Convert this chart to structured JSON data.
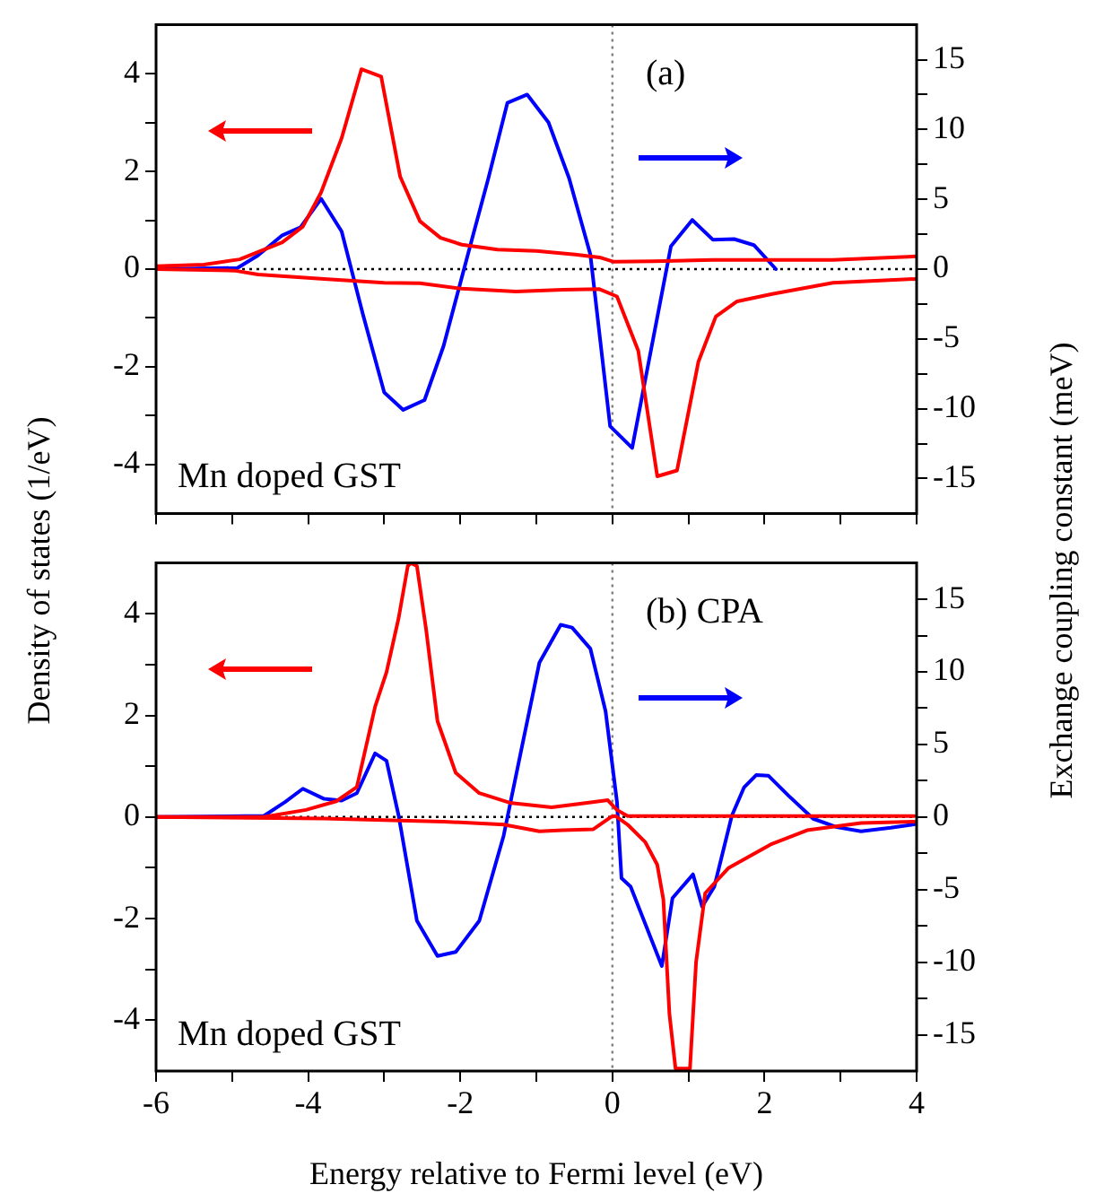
{
  "chart_data": [
    {
      "type": "line",
      "ylabel": "Density of states (1/eV)",
      "y2label": "Exchange coupling constant (meV)",
      "annotations": [
        "(a)",
        "Mn doped GST"
      ],
      "xlim": [
        -6,
        4
      ],
      "xticks": [
        {
          "value": -6,
          "label": null
        },
        {
          "value": -5,
          "label": null
        },
        {
          "value": -4,
          "label": null
        },
        {
          "value": -3,
          "label": null
        },
        {
          "value": -2,
          "label": null
        },
        {
          "value": -1,
          "label": null
        },
        {
          "value": 0,
          "label": null
        },
        {
          "value": 1,
          "label": null
        },
        {
          "value": 2,
          "label": null
        },
        {
          "value": 3,
          "label": null
        },
        {
          "value": 4,
          "label": null
        }
      ],
      "ylim": [
        -5,
        5
      ],
      "yticks": [
        {
          "value": -4,
          "label": "-4"
        },
        {
          "value": -3,
          "label": null
        },
        {
          "value": -2,
          "label": "-2"
        },
        {
          "value": -1,
          "label": null
        },
        {
          "value": 0,
          "label": "0"
        },
        {
          "value": 1,
          "label": null
        },
        {
          "value": 2,
          "label": "2"
        },
        {
          "value": 3,
          "label": null
        },
        {
          "value": 4,
          "label": "4"
        }
      ],
      "y2lim": [
        -17.5,
        17.5
      ],
      "y2ticks": [
        {
          "value": -15,
          "label": "-15"
        },
        {
          "value": -12.5,
          "label": null
        },
        {
          "value": -10,
          "label": "-10"
        },
        {
          "value": -7.5,
          "label": null
        },
        {
          "value": -5,
          "label": "-5"
        },
        {
          "value": -2.5,
          "label": null
        },
        {
          "value": 0,
          "label": "0"
        },
        {
          "value": 2.5,
          "label": null
        },
        {
          "value": 5,
          "label": "5"
        },
        {
          "value": 7.5,
          "label": null
        },
        {
          "value": 10,
          "label": "10"
        },
        {
          "value": 12.5,
          "label": null
        },
        {
          "value": 15,
          "label": "15"
        }
      ],
      "tick_labels": "y",
      "grid": false,
      "legend": false,
      "marker": "none",
      "line_style": "solid",
      "ref_lines": [
        {
          "axis": "y",
          "value": 0,
          "color": "#000000",
          "line_style": "dotted"
        },
        {
          "axis": "x",
          "value": 0,
          "color": "#808080",
          "line_style": "dotted"
        }
      ],
      "series": [
        {
          "color": "#ff0000",
          "x": [
            -6,
            -5.37,
            -4.9,
            -4.34,
            -4.07,
            -3.83,
            -3.56,
            -3.3,
            -3.04,
            -2.79,
            -2.53,
            -2.26,
            -1.98,
            -1.51,
            -1.0,
            -0.49,
            -0.17,
            0.02,
            0.54,
            1.32,
            2.1,
            2.9,
            4.0
          ],
          "values": [
            0.06,
            0.09,
            0.2,
            0.55,
            0.87,
            1.57,
            2.68,
            4.09,
            3.94,
            1.89,
            0.98,
            0.64,
            0.5,
            0.4,
            0.37,
            0.3,
            0.24,
            0.15,
            0.16,
            0.19,
            0.19,
            0.19,
            0.26
          ]
        },
        {
          "color": "#ff0000",
          "x": [
            -6,
            -4.97,
            -4.66,
            -3.79,
            -3.0,
            -2.53,
            -1.98,
            -1.27,
            -0.65,
            -0.17,
            0.06,
            0.34,
            0.59,
            0.85,
            1.13,
            1.36,
            1.64,
            2.1,
            2.9,
            4.0
          ],
          "values": [
            0,
            -0.03,
            -0.11,
            -0.2,
            -0.28,
            -0.29,
            -0.4,
            -0.46,
            -0.42,
            -0.41,
            -0.56,
            -1.67,
            -4.24,
            -4.12,
            -1.9,
            -0.97,
            -0.66,
            -0.51,
            -0.28,
            -0.2
          ]
        },
        {
          "color": "#0000ff",
          "axis": "y2",
          "x": [
            -6,
            -4.93,
            -4.66,
            -4.34,
            -4.1,
            -3.83,
            -3.56,
            -3.28,
            -3.0,
            -2.75,
            -2.47,
            -2.22,
            -1.9,
            -1.63,
            -1.38,
            -1.12,
            -0.84,
            -0.57,
            -0.29,
            -0.03,
            0.26,
            0.77,
            1.05,
            1.32,
            1.6,
            1.86,
            2.15
          ],
          "values": [
            0,
            0.08,
            0.98,
            2.42,
            3.0,
            5.04,
            2.7,
            -3.24,
            -8.83,
            -10.08,
            -9.38,
            -5.51,
            1.05,
            6.52,
            11.91,
            12.5,
            10.5,
            6.52,
            1.05,
            -11.25,
            -12.81,
            1.64,
            3.52,
            2.11,
            2.15,
            1.72,
            0
          ]
        }
      ]
    },
    {
      "type": "line",
      "xlabel": "Energy relative to Fermi level (eV)",
      "annotations": [
        "(b) CPA",
        "Mn doped GST"
      ],
      "xlim": [
        -6,
        4
      ],
      "xticks": [
        {
          "value": -6,
          "label": "-6"
        },
        {
          "value": -5,
          "label": null
        },
        {
          "value": -4,
          "label": "-4"
        },
        {
          "value": -3,
          "label": null
        },
        {
          "value": -2,
          "label": "-2"
        },
        {
          "value": -1,
          "label": null
        },
        {
          "value": 0,
          "label": "0"
        },
        {
          "value": 1,
          "label": null
        },
        {
          "value": 2,
          "label": "2"
        },
        {
          "value": 3,
          "label": null
        },
        {
          "value": 4,
          "label": "4"
        }
      ],
      "ylim": [
        -5,
        5
      ],
      "yticks": [
        {
          "value": -4,
          "label": "-4"
        },
        {
          "value": -3,
          "label": null
        },
        {
          "value": -2,
          "label": "-2"
        },
        {
          "value": -1,
          "label": null
        },
        {
          "value": 0,
          "label": "0"
        },
        {
          "value": 1,
          "label": null
        },
        {
          "value": 2,
          "label": "2"
        },
        {
          "value": 3,
          "label": null
        },
        {
          "value": 4,
          "label": "4"
        }
      ],
      "y2lim": [
        -17.5,
        17.5
      ],
      "y2ticks": [
        {
          "value": -15,
          "label": "-15"
        },
        {
          "value": -12.5,
          "label": null
        },
        {
          "value": -10,
          "label": "-10"
        },
        {
          "value": -7.5,
          "label": null
        },
        {
          "value": -5,
          "label": "-5"
        },
        {
          "value": -2.5,
          "label": null
        },
        {
          "value": 0,
          "label": "0"
        },
        {
          "value": 2.5,
          "label": null
        },
        {
          "value": 5,
          "label": "5"
        },
        {
          "value": 7.5,
          "label": null
        },
        {
          "value": 10,
          "label": "10"
        },
        {
          "value": 12.5,
          "label": null
        },
        {
          "value": 15,
          "label": "15"
        }
      ],
      "grid": false,
      "legend": false,
      "marker": "none",
      "line_style": "solid",
      "ref_lines": [
        {
          "axis": "y",
          "value": 0,
          "color": "#000000",
          "line_style": "dotted"
        },
        {
          "axis": "x",
          "value": 0,
          "color": "#808080",
          "line_style": "dotted"
        }
      ],
      "series": [
        {
          "color": "#ff0000",
          "x": [
            -6,
            -4.58,
            -4.03,
            -3.63,
            -3.36,
            -3.12,
            -2.97,
            -2.81,
            -2.69,
            -2.65,
            -2.57,
            -2.45,
            -2.3,
            -2.06,
            -1.75,
            -1.35,
            -0.8,
            -0.33,
            -0.06,
            0.06,
            0.2,
            1.3,
            2.87,
            3.97
          ],
          "values": [
            0,
            0,
            0.14,
            0.31,
            0.59,
            2.17,
            2.85,
            3.92,
            4.94,
            5,
            4.94,
            3.7,
            1.89,
            0.87,
            0.47,
            0.28,
            0.19,
            0.28,
            0.33,
            0.14,
            0.02,
            0.02,
            0.02,
            0.02
          ]
        },
        {
          "color": "#ff0000",
          "x": [
            -6,
            -3.79,
            -2.22,
            -1.43,
            -0.96,
            -0.65,
            -0.25,
            -0.02,
            0.04,
            0.2,
            0.43,
            0.59,
            0.67,
            0.75,
            0.83,
            1.02,
            1.1,
            1.22,
            1.53,
            2.08,
            2.56,
            3.27,
            3.97
          ],
          "values": [
            0,
            -0.03,
            -0.09,
            -0.15,
            -0.28,
            -0.26,
            -0.24,
            0,
            0.02,
            -0.15,
            -0.49,
            -0.94,
            -1.62,
            -3.88,
            -4.95,
            -4.95,
            -2.86,
            -1.5,
            -1.0,
            -0.54,
            -0.26,
            -0.12,
            -0.09
          ]
        },
        {
          "color": "#0000ff",
          "axis": "y2",
          "x": [
            -6,
            -4.58,
            -4.3,
            -4.07,
            -3.79,
            -3.56,
            -3.36,
            -3.12,
            -2.97,
            -2.81,
            -2.57,
            -2.3,
            -2.06,
            -1.75,
            -1.43,
            -1.2,
            -0.96,
            -0.68,
            -0.53,
            -0.29,
            -0.09,
            0.06,
            0.12,
            0.24,
            0.65,
            0.79,
            1.06,
            1.18,
            1.34,
            1.57,
            1.73,
            1.89,
            2.05,
            2.32,
            2.64,
            2.95,
            3.27,
            3.66,
            3.97
          ],
          "values": [
            0,
            0.08,
            1.05,
            1.95,
            1.25,
            1.13,
            1.64,
            4.38,
            3.87,
            0.08,
            -7.15,
            -9.57,
            -9.3,
            -7.15,
            -1.29,
            4.57,
            10.63,
            13.24,
            13.05,
            11.6,
            7.3,
            1.05,
            -4.22,
            -4.8,
            -10.27,
            -5.59,
            -3.95,
            -6.17,
            -4.8,
            0.08,
            2.03,
            2.89,
            2.85,
            1.45,
            -0.12,
            -0.7,
            -0.98,
            -0.74,
            -0.51
          ]
        }
      ]
    }
  ]
}
